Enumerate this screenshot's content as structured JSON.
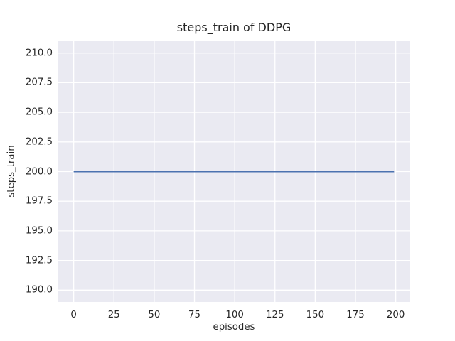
{
  "chart_data": {
    "type": "line",
    "title": "steps_train of DDPG",
    "xlabel": "episodes",
    "ylabel": "steps_train",
    "xlim": [
      -10,
      209
    ],
    "ylim": [
      189,
      211
    ],
    "xtick_values": [
      0,
      25,
      50,
      75,
      100,
      125,
      150,
      175,
      200
    ],
    "xtick_labels": [
      "0",
      "25",
      "50",
      "75",
      "100",
      "125",
      "150",
      "175",
      "200"
    ],
    "ytick_values": [
      190,
      192.5,
      195,
      197.5,
      200,
      202.5,
      205,
      207.5,
      210
    ],
    "ytick_labels": [
      "190.0",
      "192.5",
      "195.0",
      "197.5",
      "200.0",
      "202.5",
      "205.0",
      "207.5",
      "210.0"
    ],
    "grid": true,
    "legend": false,
    "series": [
      {
        "name": "steps_train",
        "x": [
          0,
          199
        ],
        "y": [
          200,
          200
        ],
        "note": "constant value 200 across all episodes"
      }
    ],
    "colors": {
      "line": "#4c72b0",
      "plot_background": "#eaeaf2",
      "grid": "#ffffff",
      "text": "#262626",
      "figure_background": "#ffffff"
    }
  }
}
